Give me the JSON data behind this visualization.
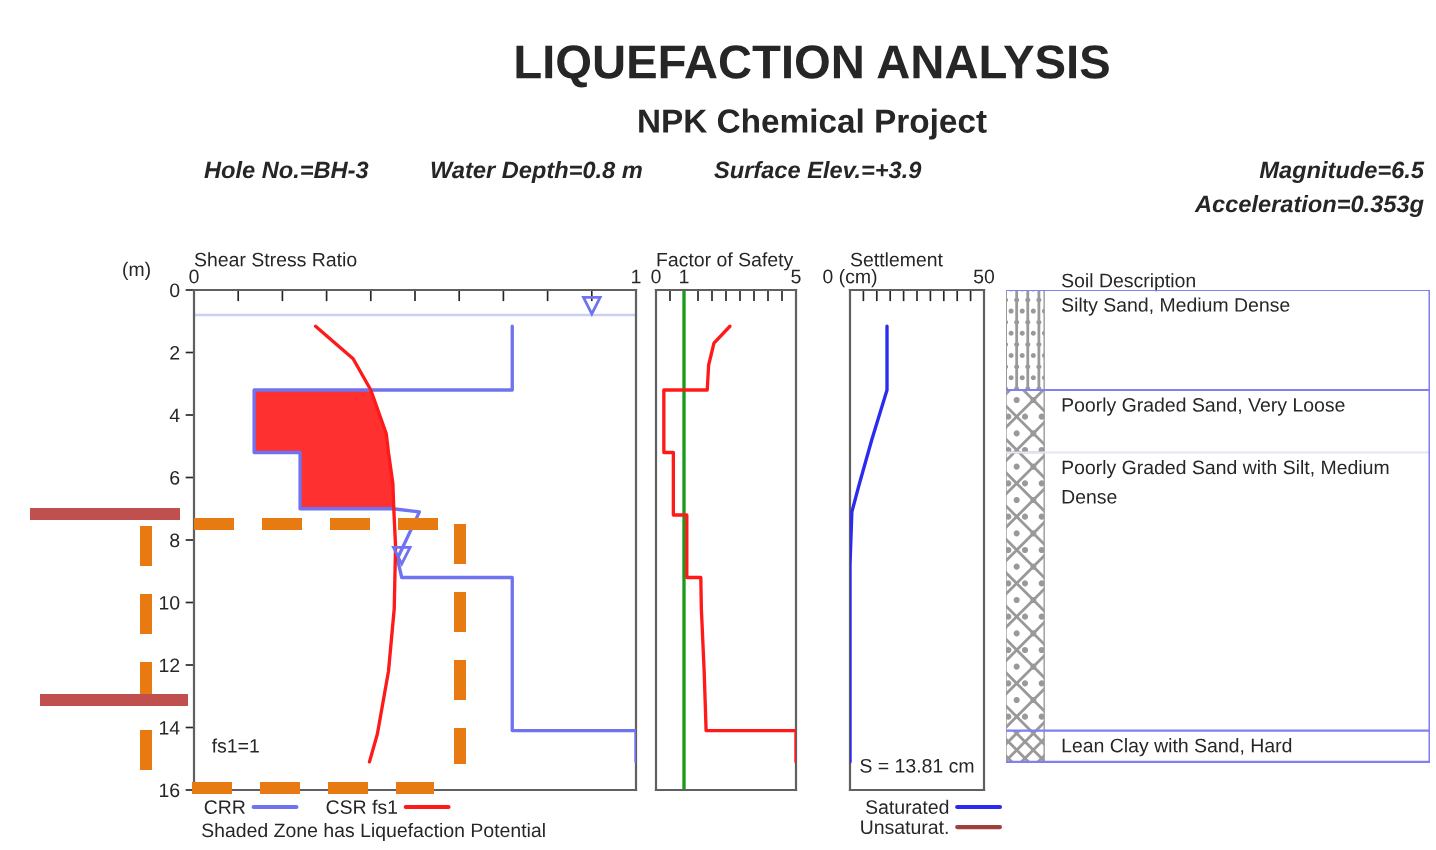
{
  "chart_data": [
    {
      "type": "line",
      "title": "LIQUEFACTION ANALYSIS",
      "subtitle": "NPK Chemical Project",
      "orientation": "horizontal",
      "xlabel": "Shear Stress Ratio",
      "ylabel": "(m)",
      "annotations": [
        "Hole No.=BH-3",
        "Water Depth=0.8 m",
        "Surface Elev.=+3.9",
        "Magnitude=6.5",
        "Acceleration=0.353g",
        "fs1=1",
        "Shaded Zone has Liquefaction Potential"
      ],
      "xlim": [
        0,
        1
      ],
      "xticks": [
        0,
        {
          "value": 0.1,
          "label": null
        },
        {
          "value": 0.2,
          "label": null
        },
        {
          "value": 0.3,
          "label": null
        },
        {
          "value": 0.4,
          "label": null
        },
        {
          "value": 0.5,
          "label": null
        },
        {
          "value": 0.6,
          "label": null
        },
        {
          "value": 0.7,
          "label": null
        },
        {
          "value": 0.8,
          "label": null
        },
        {
          "value": 0.9,
          "label": null
        },
        1
      ],
      "ylim": [
        16,
        0
      ],
      "yticks": [
        0,
        2,
        4,
        6,
        8,
        10,
        12,
        14,
        16
      ],
      "ref_lines": [
        {
          "axis": "y",
          "value": 0.8,
          "label": null,
          "color": "#c8d0f8"
        }
      ],
      "legend": "bottom",
      "grid": false,
      "series": [
        {
          "name": "CRR",
          "color": "#6f73f0",
          "x": [
            1.16,
            3.2,
            3.2,
            5.2,
            5.2,
            7.0,
            7.0,
            7.1,
            8.6,
            9.2,
            9.2,
            14.1,
            14.1,
            15.1
          ],
          "values": [
            0.72,
            0.72,
            0.136,
            0.136,
            0.24,
            0.24,
            0.45,
            0.51,
            0.46,
            0.47,
            0.72,
            0.72,
            1.0,
            1.0
          ]
        },
        {
          "name": "CSR fs1",
          "color": "#ff1a1a",
          "x": [
            1.16,
            2.2,
            3.2,
            4.0,
            4.6,
            5.2,
            5.2,
            6.2,
            7.0,
            8.2,
            10.2,
            12.2,
            14.2,
            15.1
          ],
          "values": [
            0.275,
            0.36,
            0.4,
            0.42,
            0.435,
            0.44,
            0.44,
            0.45,
            0.452,
            0.456,
            0.453,
            0.44,
            0.415,
            0.397
          ],
          "lower": [
            null,
            null,
            0.136,
            0.136,
            0.136,
            0.136,
            0.24,
            0.24,
            0.24,
            null,
            null,
            null,
            null,
            null
          ],
          "upper": [
            null,
            null,
            0.4,
            0.42,
            0.435,
            0.44,
            0.44,
            0.45,
            0.452,
            null,
            null,
            null,
            null,
            null
          ]
        }
      ]
    },
    {
      "type": "line",
      "orientation": "horizontal",
      "xlabel": "Factor of Safety",
      "xlim": [
        0,
        5
      ],
      "xticks": [
        0,
        {
          "value": 0.5,
          "label": null
        },
        1,
        {
          "value": 1.5,
          "label": null
        },
        {
          "value": 2,
          "label": null
        },
        {
          "value": 2.5,
          "label": null
        },
        {
          "value": 3,
          "label": null
        },
        {
          "value": 3.5,
          "label": null
        },
        {
          "value": 4,
          "label": null
        },
        {
          "value": 4.5,
          "label": null
        },
        5
      ],
      "ylim": [
        16,
        0
      ],
      "tick_labels": "x",
      "grid": false,
      "ref_lines": [
        {
          "axis": "x",
          "value": 1,
          "label": null,
          "color": "#1a9a1a"
        }
      ],
      "series": [
        {
          "color": "#ff1a1a",
          "x": [
            1.16,
            1.7,
            2.4,
            3.2,
            3.2,
            5.2,
            5.2,
            7.2,
            7.2,
            9.2,
            9.2,
            10.2,
            12.2,
            14.1,
            14.1,
            15.1
          ],
          "values": [
            2.64,
            2.07,
            1.88,
            1.83,
            0.28,
            0.28,
            0.62,
            0.62,
            1.1,
            1.1,
            1.6,
            1.62,
            1.72,
            1.79,
            5,
            5
          ]
        }
      ]
    },
    {
      "type": "line",
      "orientation": "horizontal",
      "xlabel": "Settlement",
      "annotations": [
        "S = 13.81 cm"
      ],
      "xlim": [
        0,
        50
      ],
      "xticks": [
        {
          "value": 0,
          "label": "0 (cm)"
        },
        {
          "value": 5,
          "label": null
        },
        {
          "value": 10,
          "label": null
        },
        {
          "value": 15,
          "label": null
        },
        {
          "value": 20,
          "label": null
        },
        {
          "value": 25,
          "label": null
        },
        {
          "value": 30,
          "label": null
        },
        {
          "value": 35,
          "label": null
        },
        {
          "value": 40,
          "label": null
        },
        {
          "value": 45,
          "label": null
        },
        50
      ],
      "ylim": [
        16,
        0
      ],
      "tick_labels": "x",
      "grid": false,
      "legend": "bottom",
      "series": [
        {
          "name": "Saturated",
          "color": "#2a2af0",
          "x": [
            1.16,
            3.2,
            4.8,
            6.2,
            7.1,
            8.8,
            15.1
          ],
          "values": [
            13.81,
            13.81,
            8.1,
            3.5,
            0.7,
            0,
            0
          ]
        },
        {
          "name": "Unsaturat.",
          "color": "#a0403a"
        }
      ]
    },
    {
      "type": "other",
      "xlabel": "Soil Description",
      "annotations": [
        "Silty Sand, Medium Dense",
        "Poorly Graded Sand, Very Loose",
        "Poorly Graded Sand with Silt, Medium\nDense",
        "Lean Clay with Sand, Hard"
      ]
    }
  ]
}
